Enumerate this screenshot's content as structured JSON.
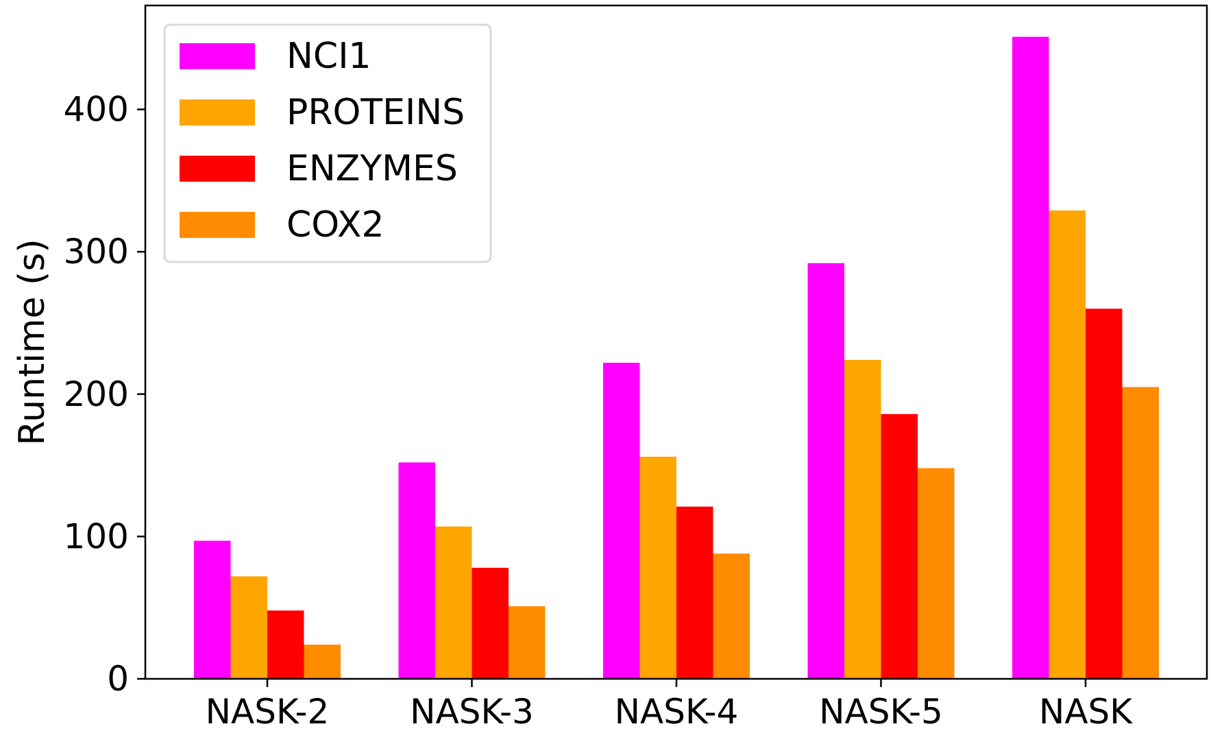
{
  "chart_data": {
    "type": "bar",
    "title": "",
    "xlabel": "",
    "ylabel": "Runtime (s)",
    "categories": [
      "NASK-2",
      "NASK-3",
      "NASK-4",
      "NASK-5",
      "NASK"
    ],
    "series": [
      {
        "name": "NCI1",
        "color": "#ff00ff",
        "values": [
          97,
          152,
          222,
          292,
          451
        ]
      },
      {
        "name": "PROTEINS",
        "color": "#ffa500",
        "values": [
          72,
          107,
          156,
          224,
          329
        ]
      },
      {
        "name": "ENZYMES",
        "color": "#ff0000",
        "values": [
          48,
          78,
          121,
          186,
          260
        ]
      },
      {
        "name": "COX2",
        "color": "#ff8c00",
        "values": [
          24,
          51,
          88,
          148,
          205
        ]
      }
    ],
    "ylim": [
      0,
      473
    ],
    "yticks": [
      0,
      100,
      200,
      300,
      400
    ],
    "grid": false,
    "legend_position": "top-left"
  }
}
